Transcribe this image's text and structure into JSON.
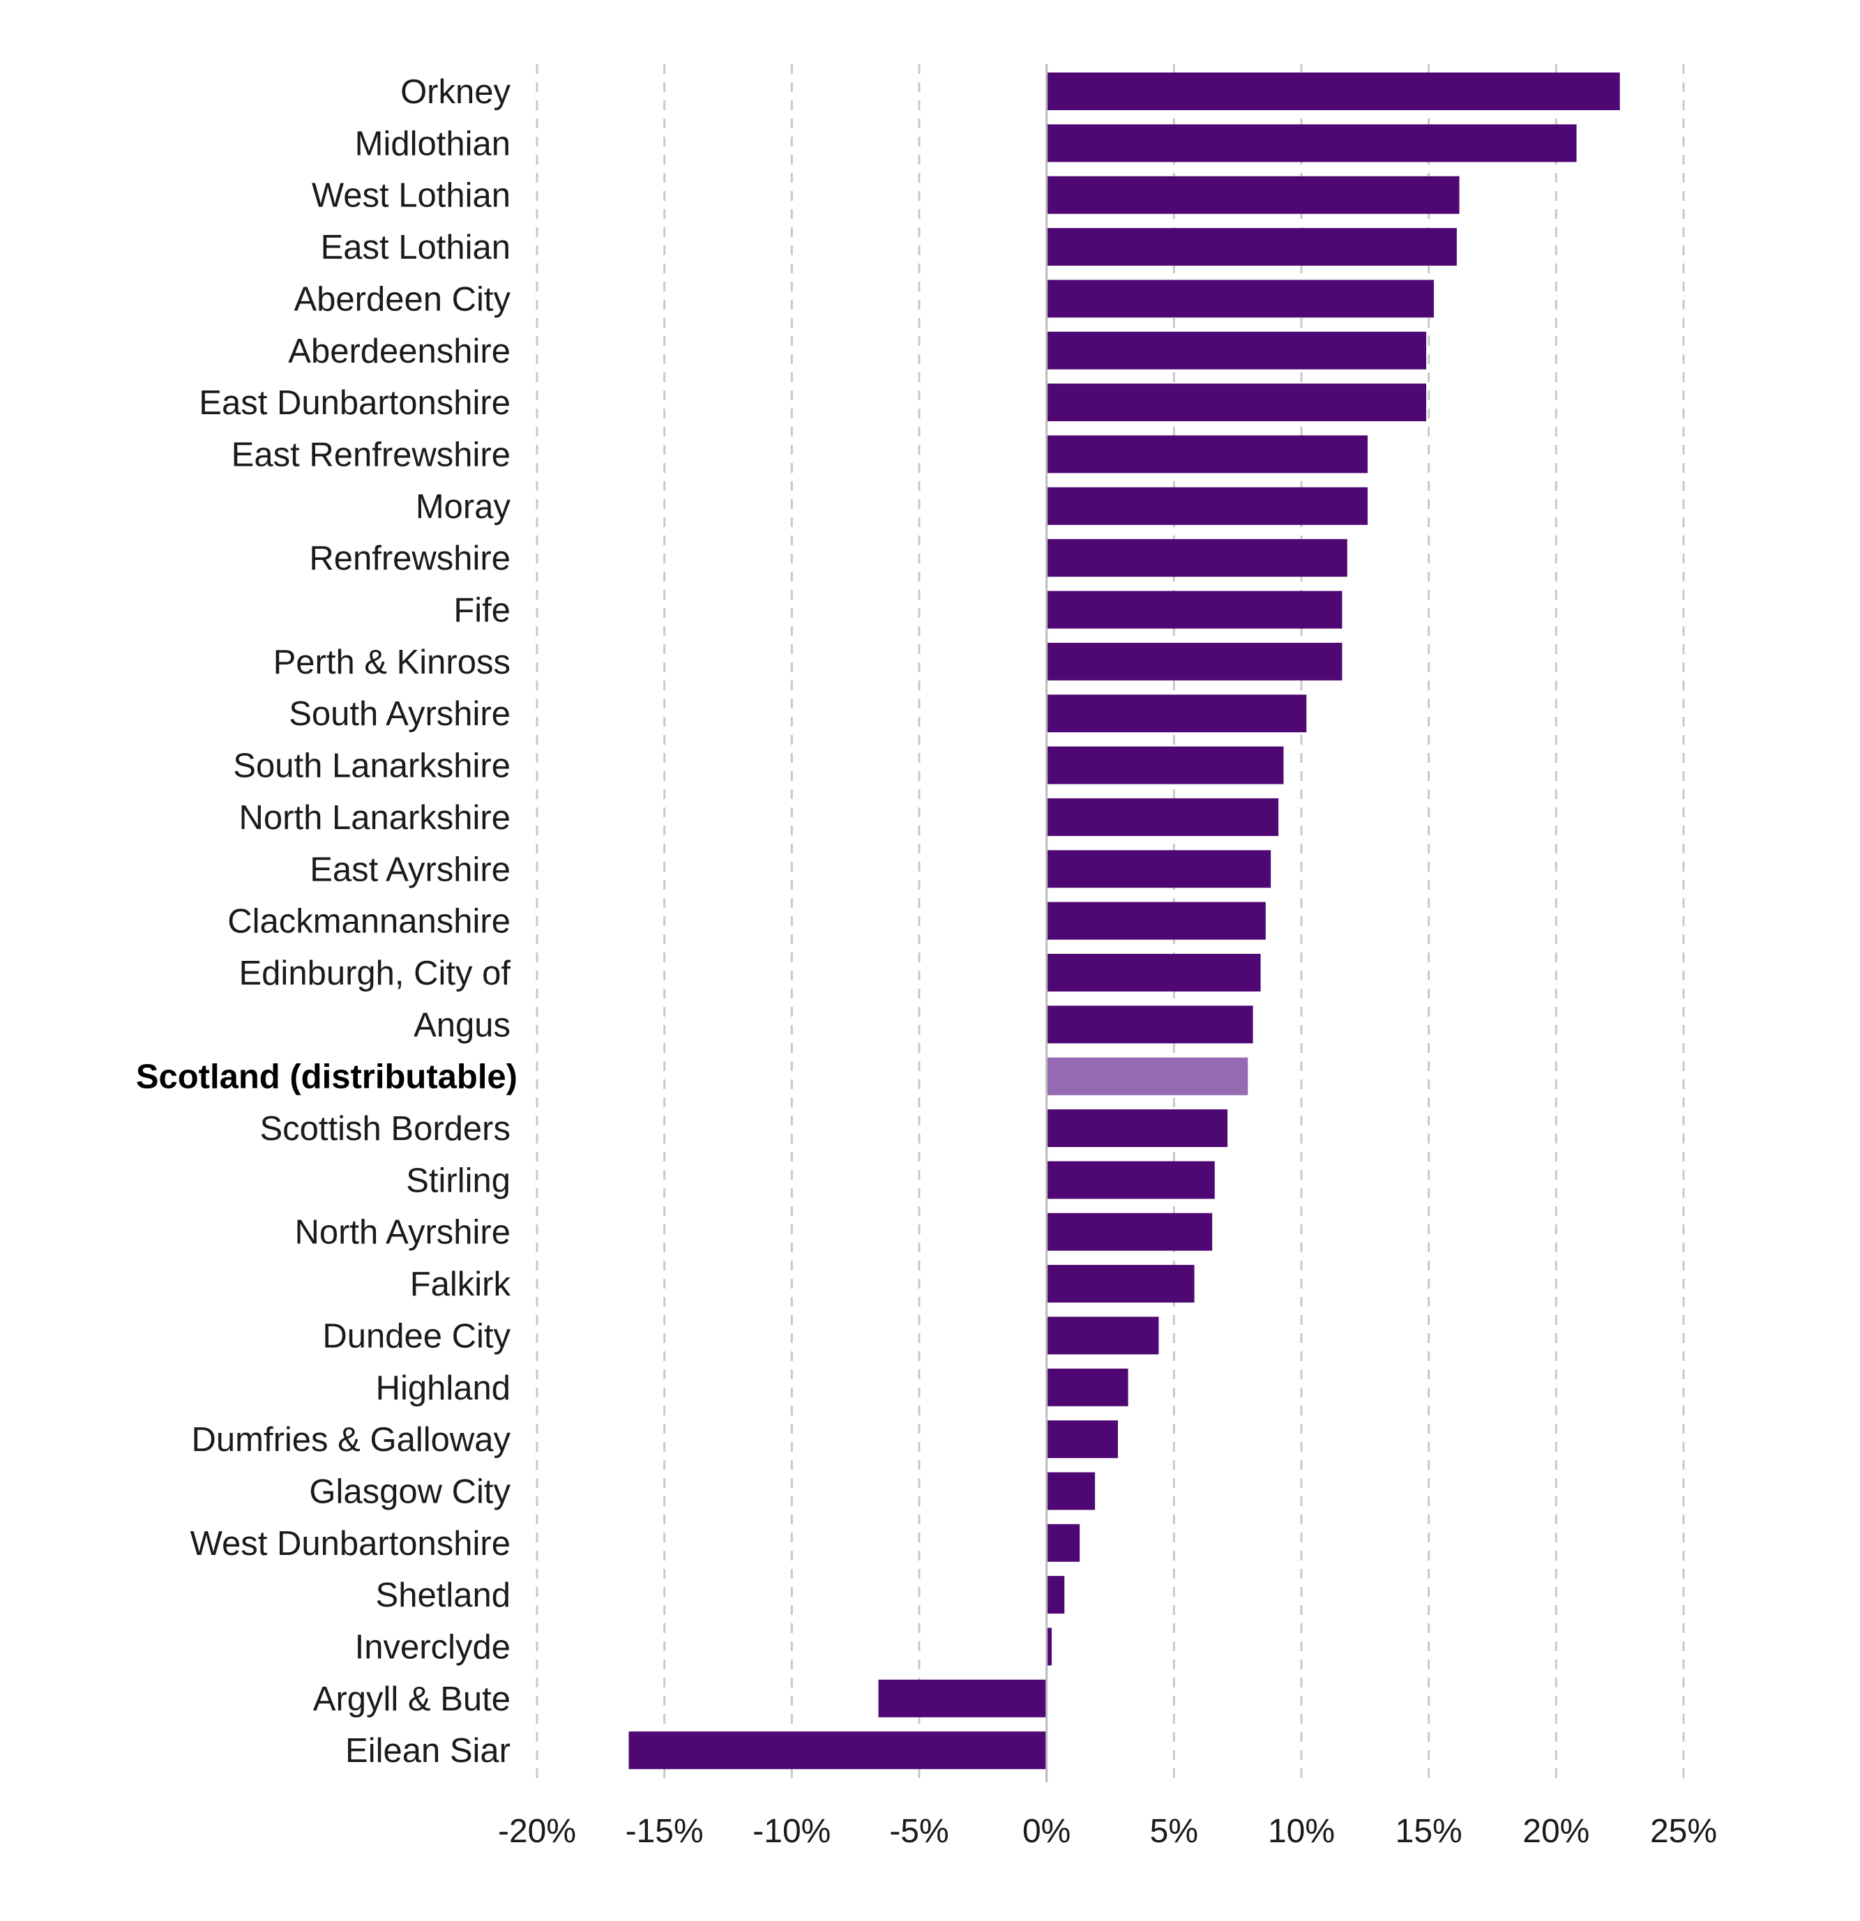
{
  "chart_data": {
    "type": "bar",
    "orientation": "horizontal",
    "title": "",
    "xlabel": "",
    "ylabel": "",
    "xlim": [
      -20,
      25
    ],
    "x_ticks": [
      -20,
      -15,
      -10,
      -5,
      0,
      5,
      10,
      15,
      20,
      25
    ],
    "x_tick_labels": [
      "-20%",
      "-15%",
      "-10%",
      "-5%",
      "0%",
      "5%",
      "10%",
      "15%",
      "20%",
      "25%"
    ],
    "grid": "vertical dashed",
    "colors": {
      "bar": "#4f0873",
      "highlight": "#956ab0",
      "grid": "#c8c8c8",
      "zero_line": "#bbbbbb"
    },
    "highlight_category": "Scotland (distributable)",
    "categories": [
      "Orkney",
      "Midlothian",
      "West Lothian",
      "East Lothian",
      "Aberdeen City",
      "Aberdeenshire",
      "East Dunbartonshire",
      "East Renfrewshire",
      "Moray",
      "Renfrewshire",
      "Fife",
      "Perth & Kinross",
      "South Ayrshire",
      "South Lanarkshire",
      "North Lanarkshire",
      "East Ayrshire",
      "Clackmannanshire",
      "Edinburgh, City of",
      "Angus",
      "Scotland (distributable)",
      "Scottish Borders",
      "Stirling",
      "North Ayrshire",
      "Falkirk",
      "Dundee City",
      "Highland",
      "Dumfries & Galloway",
      "Glasgow City",
      "West Dunbartonshire",
      "Shetland",
      "Inverclyde",
      "Argyll & Bute",
      "Eilean Siar"
    ],
    "values": [
      22.5,
      20.8,
      16.2,
      16.1,
      15.2,
      14.9,
      14.9,
      12.6,
      12.6,
      11.8,
      11.6,
      11.6,
      10.2,
      9.3,
      9.1,
      8.8,
      8.6,
      8.4,
      8.1,
      7.9,
      7.1,
      6.6,
      6.5,
      5.8,
      4.4,
      3.2,
      2.8,
      1.9,
      1.3,
      0.7,
      0.2,
      -6.6,
      -16.4
    ]
  }
}
